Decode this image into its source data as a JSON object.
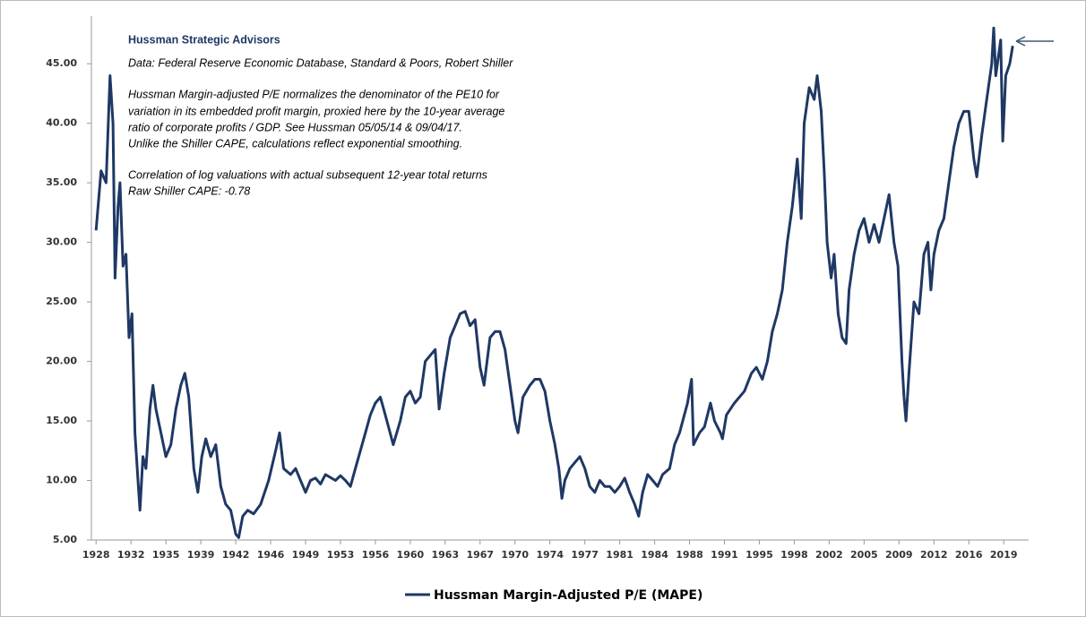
{
  "chart_data": {
    "type": "line",
    "annotations": [
      "Hussman Strategic Advisors",
      "Data: Federal Reserve Economic Database, Standard & Poors, Robert Shiller",
      "Hussman Margin-adjusted P/E normalizes the denominator of the PE10 for",
      "variation in its embedded profit margin, proxied here by the 10-year average",
      "ratio of corporate profits / GDP. See Hussman 05/05/14  & 09/04/17.",
      "Unlike the Shiller CAPE, calculations reflect exponential smoothing.",
      "Correlation of log valuations with actual subsequent 12-year total returns",
      "Raw Shiller CAPE: -0.78"
    ],
    "xlim": [
      1927.8,
      2021.5
    ],
    "ylim": [
      5,
      49
    ],
    "xticks": [
      {
        "value": 1928,
        "label": "1928"
      },
      {
        "value": 1931.5,
        "label": "1932"
      },
      {
        "value": 1935,
        "label": "1935"
      },
      {
        "value": 1938.5,
        "label": "1939"
      },
      {
        "value": 1942,
        "label": "1942"
      },
      {
        "value": 1945.5,
        "label": "1946"
      },
      {
        "value": 1949,
        "label": "1949"
      },
      {
        "value": 1952.5,
        "label": "1953"
      },
      {
        "value": 1956,
        "label": "1956"
      },
      {
        "value": 1959.5,
        "label": "1960"
      },
      {
        "value": 1963,
        "label": "1963"
      },
      {
        "value": 1966.5,
        "label": "1967"
      },
      {
        "value": 1970,
        "label": "1970"
      },
      {
        "value": 1973.5,
        "label": "1974"
      },
      {
        "value": 1977,
        "label": "1977"
      },
      {
        "value": 1980.5,
        "label": "1981"
      },
      {
        "value": 1984,
        "label": "1984"
      },
      {
        "value": 1987.5,
        "label": "1988"
      },
      {
        "value": 1991,
        "label": "1991"
      },
      {
        "value": 1994.5,
        "label": "1995"
      },
      {
        "value": 1998,
        "label": "1998"
      },
      {
        "value": 2001.5,
        "label": "2002"
      },
      {
        "value": 2005,
        "label": "2005"
      },
      {
        "value": 2008.5,
        "label": "2009"
      },
      {
        "value": 2012,
        "label": "2012"
      },
      {
        "value": 2015.5,
        "label": "2016"
      },
      {
        "value": 2019,
        "label": "2019"
      }
    ],
    "yticks": [
      {
        "value": 5,
        "label": "5.00"
      },
      {
        "value": 10,
        "label": "10.00"
      },
      {
        "value": 15,
        "label": "15.00"
      },
      {
        "value": 20,
        "label": "20.00"
      },
      {
        "value": 25,
        "label": "25.00"
      },
      {
        "value": 30,
        "label": "30.00"
      },
      {
        "value": 35,
        "label": "35.00"
      },
      {
        "value": 40,
        "label": "40.00"
      },
      {
        "value": 45,
        "label": "45.00"
      }
    ],
    "grid": false,
    "legend": "bottom",
    "x": [
      1928.0,
      1928.5,
      1929.0,
      1929.4,
      1929.7,
      1929.9,
      1930.2,
      1930.4,
      1930.7,
      1931.0,
      1931.3,
      1931.6,
      1931.9,
      1932.2,
      1932.4,
      1932.7,
      1933.0,
      1933.4,
      1933.7,
      1934.0,
      1934.5,
      1935.0,
      1935.5,
      1936.0,
      1936.5,
      1936.9,
      1937.3,
      1937.8,
      1938.2,
      1938.6,
      1939.0,
      1939.5,
      1940.0,
      1940.5,
      1941.0,
      1941.5,
      1942.0,
      1942.3,
      1942.7,
      1943.2,
      1943.8,
      1944.5,
      1945.3,
      1946.0,
      1946.4,
      1946.8,
      1947.5,
      1948.0,
      1948.5,
      1949.0,
      1949.5,
      1950.0,
      1950.5,
      1951.0,
      1952.0,
      1952.5,
      1953.0,
      1953.5,
      1954.0,
      1954.5,
      1955.0,
      1955.5,
      1956.0,
      1956.5,
      1957.0,
      1957.8,
      1958.5,
      1959.0,
      1959.5,
      1960.0,
      1960.5,
      1961.0,
      1961.5,
      1962.0,
      1962.4,
      1962.9,
      1963.5,
      1964.0,
      1964.5,
      1965.0,
      1965.5,
      1966.0,
      1966.5,
      1966.9,
      1967.5,
      1968.0,
      1968.5,
      1969.0,
      1969.5,
      1970.0,
      1970.3,
      1970.8,
      1971.5,
      1972.0,
      1972.5,
      1973.0,
      1973.5,
      1974.0,
      1974.4,
      1974.7,
      1975.0,
      1975.5,
      1976.0,
      1976.5,
      1977.0,
      1977.5,
      1978.0,
      1978.5,
      1979.0,
      1979.5,
      1980.0,
      1980.5,
      1981.0,
      1981.5,
      1982.0,
      1982.4,
      1982.8,
      1983.3,
      1983.8,
      1984.3,
      1984.8,
      1985.5,
      1986.0,
      1986.5,
      1987.3,
      1987.7,
      1987.9,
      1988.5,
      1989.0,
      1989.6,
      1990.0,
      1990.6,
      1990.8,
      1991.2,
      1992.0,
      1993.0,
      1993.7,
      1994.2,
      1994.8,
      1995.3,
      1995.8,
      1996.3,
      1996.8,
      1997.3,
      1997.8,
      1998.3,
      1998.7,
      1999.0,
      1999.5,
      2000.0,
      2000.3,
      2000.7,
      2001.0,
      2001.3,
      2001.7,
      2002.0,
      2002.4,
      2002.8,
      2003.2,
      2003.5,
      2004.0,
      2004.5,
      2005.0,
      2005.5,
      2006.0,
      2006.5,
      2007.0,
      2007.5,
      2008.0,
      2008.4,
      2008.8,
      2009.0,
      2009.2,
      2009.5,
      2010.0,
      2010.5,
      2011.0,
      2011.4,
      2011.7,
      2012.0,
      2012.5,
      2013.0,
      2013.5,
      2014.0,
      2014.5,
      2015.0,
      2015.5,
      2016.0,
      2016.3,
      2016.8,
      2017.3,
      2017.8,
      2018.0,
      2018.2,
      2018.7,
      2018.9,
      2019.2,
      2019.6,
      2019.9
    ],
    "series": [
      {
        "name": "Hussman Margin-Adjusted P/E (MAPE)",
        "color": "#1f3864",
        "values": [
          31,
          36,
          35,
          44,
          40,
          27,
          33,
          35,
          28,
          29,
          22,
          24,
          14,
          10,
          7.5,
          12,
          11,
          16,
          18,
          16,
          14,
          12,
          13,
          16,
          18,
          19,
          17,
          11,
          9,
          12,
          13.5,
          12,
          13,
          9.5,
          8,
          7.5,
          5.5,
          5.2,
          7,
          7.5,
          7.2,
          8,
          10,
          12.5,
          14,
          11,
          10.5,
          11,
          10,
          9,
          10,
          10.2,
          9.7,
          10.5,
          10,
          10.4,
          10,
          9.5,
          11,
          12.5,
          14,
          15.5,
          16.5,
          17,
          15.5,
          13,
          15,
          17,
          17.5,
          16.5,
          17,
          20,
          20.5,
          21,
          16,
          19,
          22,
          23,
          24,
          24.2,
          23,
          23.5,
          19.5,
          18,
          22,
          22.5,
          22.5,
          21,
          18,
          15,
          14,
          17,
          18,
          18.5,
          18.5,
          17.5,
          15,
          13,
          11,
          8.5,
          10,
          11,
          11.5,
          12,
          11,
          9.5,
          9,
          10,
          9.5,
          9.5,
          9,
          9.5,
          10.2,
          9,
          8,
          7,
          9,
          10.5,
          10,
          9.5,
          10.5,
          11,
          13,
          14,
          16.5,
          18.5,
          13,
          14,
          14.5,
          16.5,
          15,
          14,
          13.5,
          15.5,
          16.5,
          17.5,
          19,
          19.5,
          18.5,
          20,
          22.5,
          24,
          26,
          30,
          33,
          37,
          32,
          40,
          43,
          42,
          44,
          41,
          36,
          30,
          27,
          29,
          24,
          22,
          21.5,
          26,
          29,
          31,
          32,
          30,
          31.5,
          30,
          32,
          34,
          30,
          28,
          20,
          17,
          15,
          19,
          25,
          24,
          29,
          30,
          26,
          29,
          31,
          32,
          35,
          38,
          40,
          41,
          41,
          37,
          35.5,
          39,
          42,
          45,
          48,
          44,
          47,
          38.5,
          44,
          45,
          46.5
        ]
      }
    ]
  }
}
